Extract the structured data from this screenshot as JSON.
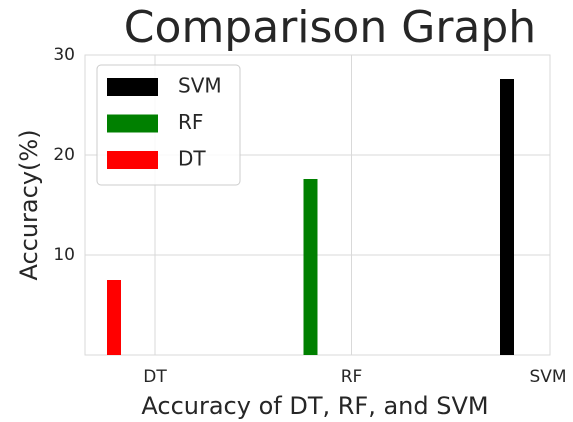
{
  "chart_data": {
    "type": "bar",
    "title": "Comparison Graph",
    "x_label": "Accuracy of DT, RF, and SVM",
    "y_label": "Accuracy(%)",
    "categories": [
      "DT",
      "RF",
      "SVM"
    ],
    "values": [
      7.5,
      17.6,
      27.6
    ],
    "colors": [
      "#ff0000",
      "#008000",
      "#000000"
    ],
    "ylim": [
      0,
      30
    ],
    "yticks": [
      10,
      20,
      30
    ],
    "grid": true,
    "legend": "upper left"
  }
}
